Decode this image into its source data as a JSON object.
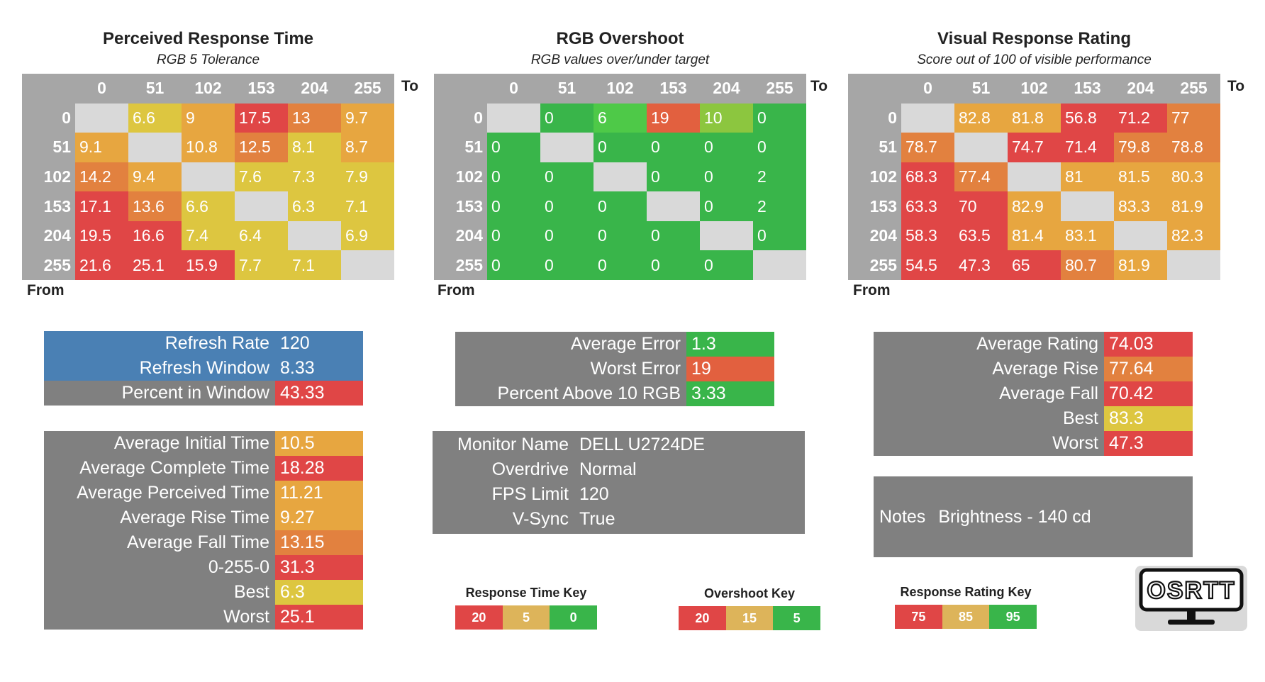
{
  "colors": {
    "header_gray": "#a6a6a6",
    "blank_cell": "#d9d9d9",
    "red": "#e04646",
    "orange": "#e2813f",
    "amber": "#e7a640",
    "yellow": "#ddc640",
    "green": "#39b54a",
    "lime": "#8cc63f",
    "blue": "#4a80b4",
    "panel_gray": "#808080"
  },
  "chart_data": [
    {
      "type": "table",
      "title": "Perceived Response Time",
      "subtitle": "RGB 5 Tolerance",
      "to_label": "To",
      "from_label": "From",
      "columns": [
        "0",
        "51",
        "102",
        "153",
        "204",
        "255"
      ],
      "rows": [
        "0",
        "51",
        "102",
        "153",
        "204",
        "255"
      ],
      "values": [
        [
          "",
          "6.6",
          "9",
          "17.5",
          "13",
          "9.7"
        ],
        [
          "9.1",
          "",
          "10.8",
          "12.5",
          "8.1",
          "8.7"
        ],
        [
          "14.2",
          "9.4",
          "",
          "7.6",
          "7.3",
          "7.9"
        ],
        [
          "17.1",
          "13.6",
          "6.6",
          "",
          "6.3",
          "7.1"
        ],
        [
          "19.5",
          "16.6",
          "7.4",
          "6.4",
          "",
          "6.9"
        ],
        [
          "21.6",
          "25.1",
          "15.9",
          "7.7",
          "7.1",
          ""
        ]
      ],
      "cell_colors": [
        [
          "#d9d9d9",
          "#ddc640",
          "#e7a640",
          "#e04646",
          "#e2813f",
          "#e7a640"
        ],
        [
          "#e7a640",
          "#d9d9d9",
          "#e7a640",
          "#e2813f",
          "#ddc640",
          "#e7a640"
        ],
        [
          "#e2813f",
          "#e7a640",
          "#d9d9d9",
          "#ddc640",
          "#ddc640",
          "#ddc640"
        ],
        [
          "#e04646",
          "#e2813f",
          "#ddc640",
          "#d9d9d9",
          "#ddc640",
          "#ddc640"
        ],
        [
          "#e04646",
          "#e04646",
          "#ddc640",
          "#ddc640",
          "#d9d9d9",
          "#ddc640"
        ],
        [
          "#e04646",
          "#e04646",
          "#e04646",
          "#ddc640",
          "#ddc640",
          "#d9d9d9"
        ]
      ]
    },
    {
      "type": "table",
      "title": "RGB Overshoot",
      "subtitle": "RGB values over/under target",
      "to_label": "To",
      "from_label": "From",
      "columns": [
        "0",
        "51",
        "102",
        "153",
        "204",
        "255"
      ],
      "rows": [
        "0",
        "51",
        "102",
        "153",
        "204",
        "255"
      ],
      "values": [
        [
          "",
          "0",
          "6",
          "19",
          "10",
          "0"
        ],
        [
          "0",
          "",
          "0",
          "0",
          "0",
          "0"
        ],
        [
          "0",
          "0",
          "",
          "0",
          "0",
          "2"
        ],
        [
          "0",
          "0",
          "0",
          "",
          "0",
          "2"
        ],
        [
          "0",
          "0",
          "0",
          "0",
          "",
          "0"
        ],
        [
          "0",
          "0",
          "0",
          "0",
          "0",
          ""
        ]
      ],
      "cell_colors": [
        [
          "#d9d9d9",
          "#39b54a",
          "#4ec948",
          "#e2603f",
          "#8cc63f",
          "#39b54a"
        ],
        [
          "#39b54a",
          "#d9d9d9",
          "#39b54a",
          "#39b54a",
          "#39b54a",
          "#39b54a"
        ],
        [
          "#39b54a",
          "#39b54a",
          "#d9d9d9",
          "#39b54a",
          "#39b54a",
          "#39b54a"
        ],
        [
          "#39b54a",
          "#39b54a",
          "#39b54a",
          "#d9d9d9",
          "#39b54a",
          "#39b54a"
        ],
        [
          "#39b54a",
          "#39b54a",
          "#39b54a",
          "#39b54a",
          "#d9d9d9",
          "#39b54a"
        ],
        [
          "#39b54a",
          "#39b54a",
          "#39b54a",
          "#39b54a",
          "#39b54a",
          "#d9d9d9"
        ]
      ]
    },
    {
      "type": "table",
      "title": "Visual Response Rating",
      "subtitle": "Score out of 100 of visible performance",
      "to_label": "To",
      "from_label": "From",
      "columns": [
        "0",
        "51",
        "102",
        "153",
        "204",
        "255"
      ],
      "rows": [
        "0",
        "51",
        "102",
        "153",
        "204",
        "255"
      ],
      "values": [
        [
          "",
          "82.8",
          "81.8",
          "56.8",
          "71.2",
          "77"
        ],
        [
          "78.7",
          "",
          "74.7",
          "71.4",
          "79.8",
          "78.8"
        ],
        [
          "68.3",
          "77.4",
          "",
          "81",
          "81.5",
          "80.3"
        ],
        [
          "63.3",
          "70",
          "82.9",
          "",
          "83.3",
          "81.9"
        ],
        [
          "58.3",
          "63.5",
          "81.4",
          "83.1",
          "",
          "82.3"
        ],
        [
          "54.5",
          "47.3",
          "65",
          "80.7",
          "81.9",
          ""
        ]
      ],
      "cell_colors": [
        [
          "#d9d9d9",
          "#e7a640",
          "#e7a640",
          "#e04646",
          "#e04646",
          "#e2813f"
        ],
        [
          "#e2813f",
          "#d9d9d9",
          "#e04646",
          "#e04646",
          "#e2813f",
          "#e2813f"
        ],
        [
          "#e04646",
          "#e2813f",
          "#d9d9d9",
          "#e7a640",
          "#e7a640",
          "#e7a640"
        ],
        [
          "#e04646",
          "#e04646",
          "#e7a640",
          "#d9d9d9",
          "#e7a640",
          "#e7a640"
        ],
        [
          "#e04646",
          "#e04646",
          "#e7a640",
          "#e7a640",
          "#d9d9d9",
          "#e7a640"
        ],
        [
          "#e04646",
          "#e04646",
          "#e04646",
          "#e2813f",
          "#e7a640",
          "#d9d9d9"
        ]
      ]
    }
  ],
  "refresh_panel": [
    {
      "label": "Refresh Rate",
      "value": "120",
      "bg": "#4a80b4",
      "vbg": "#4a80b4"
    },
    {
      "label": "Refresh Window",
      "value": "8.33",
      "bg": "#4a80b4",
      "vbg": "#4a80b4"
    },
    {
      "label": "Percent in Window",
      "value": "43.33",
      "bg": "#808080",
      "vbg": "#e04646"
    }
  ],
  "time_panel": [
    {
      "label": "Average Initial Time",
      "value": "10.5",
      "vbg": "#e7a640"
    },
    {
      "label": "Average Complete Time",
      "value": "18.28",
      "vbg": "#e04646"
    },
    {
      "label": "Average Perceived Time",
      "value": "11.21",
      "vbg": "#e7a640"
    },
    {
      "label": "Average Rise Time",
      "value": "9.27",
      "vbg": "#e7a640"
    },
    {
      "label": "Average Fall Time",
      "value": "13.15",
      "vbg": "#e2813f"
    },
    {
      "label": "0-255-0",
      "value": "31.3",
      "vbg": "#e04646"
    },
    {
      "label": "Best",
      "value": "6.3",
      "vbg": "#ddc640"
    },
    {
      "label": "Worst",
      "value": "25.1",
      "vbg": "#e04646"
    }
  ],
  "error_panel": [
    {
      "label": "Average Error",
      "value": "1.3",
      "vbg": "#39b54a"
    },
    {
      "label": "Worst Error",
      "value": "19",
      "vbg": "#e2603f"
    },
    {
      "label": "Percent Above 10 RGB",
      "value": "3.33",
      "vbg": "#39b54a"
    }
  ],
  "monitor_panel": [
    {
      "label": "Monitor Name",
      "value": "DELL U2724DE"
    },
    {
      "label": "Overdrive",
      "value": "Normal"
    },
    {
      "label": "FPS Limit",
      "value": "120"
    },
    {
      "label": "V-Sync",
      "value": "True"
    }
  ],
  "rating_panel": [
    {
      "label": "Average Rating",
      "value": "74.03",
      "vbg": "#e04646"
    },
    {
      "label": "Average Rise",
      "value": "77.64",
      "vbg": "#e2813f"
    },
    {
      "label": "Average Fall",
      "value": "70.42",
      "vbg": "#e04646"
    },
    {
      "label": "Best",
      "value": "83.3",
      "vbg": "#ddc640"
    },
    {
      "label": "Worst",
      "value": "47.3",
      "vbg": "#e04646"
    }
  ],
  "notes": {
    "label": "Notes",
    "value": "Brightness - 140 cd"
  },
  "keys": [
    {
      "title": "Response Time Key",
      "items": [
        {
          "text": "20",
          "color": "#e04646"
        },
        {
          "text": "5",
          "color": "#ddb45a"
        },
        {
          "text": "0",
          "color": "#39b54a"
        }
      ]
    },
    {
      "title": "Overshoot Key",
      "items": [
        {
          "text": "20",
          "color": "#e04646"
        },
        {
          "text": "15",
          "color": "#ddb45a"
        },
        {
          "text": "5",
          "color": "#39b54a"
        }
      ]
    },
    {
      "title": "Response Rating Key",
      "items": [
        {
          "text": "75",
          "color": "#e04646"
        },
        {
          "text": "85",
          "color": "#ddb45a"
        },
        {
          "text": "95",
          "color": "#39b54a"
        }
      ]
    }
  ],
  "logo": {
    "text": "OSRTT",
    "icon": "monitor-icon"
  }
}
